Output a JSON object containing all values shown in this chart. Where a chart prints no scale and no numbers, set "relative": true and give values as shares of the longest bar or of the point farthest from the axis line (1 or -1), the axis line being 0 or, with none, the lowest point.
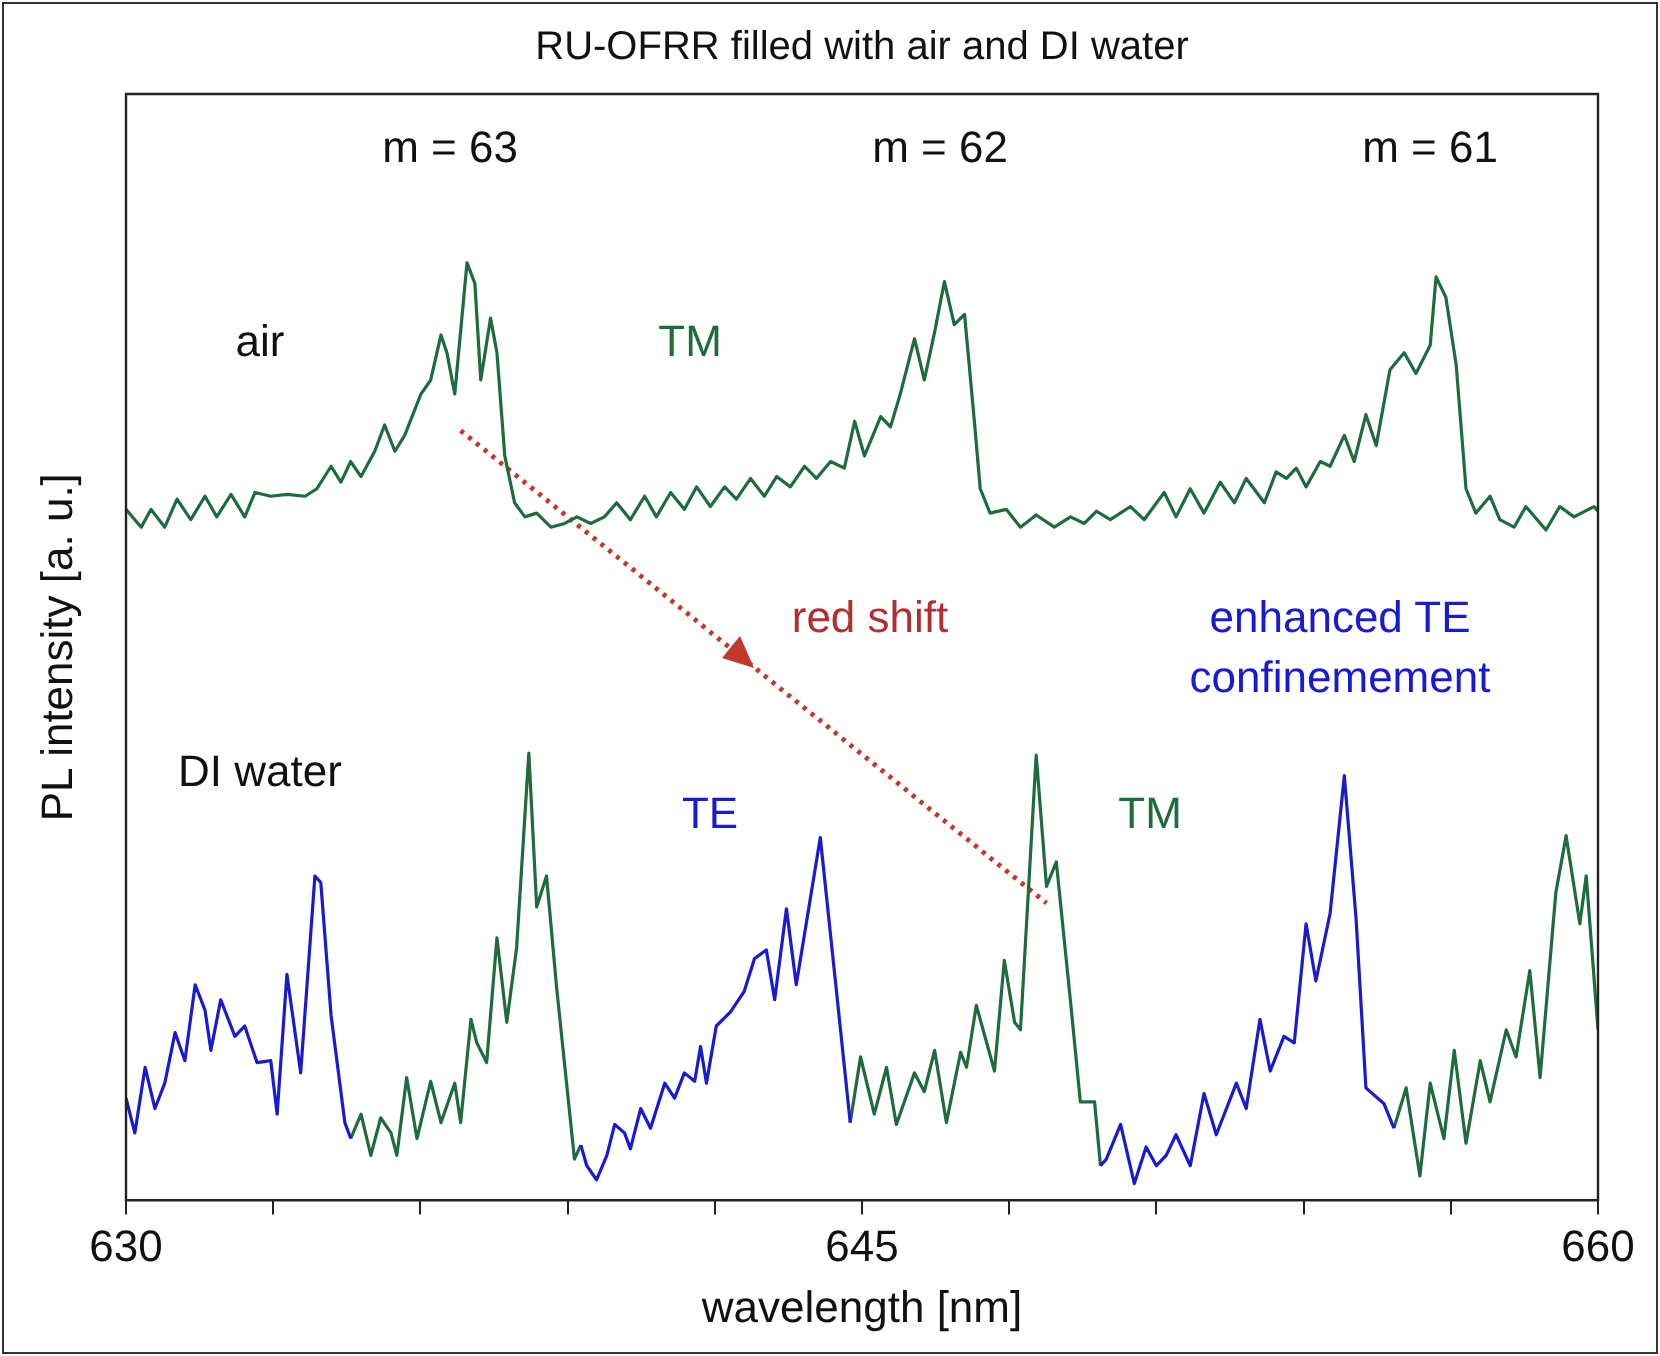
{
  "chart_data": {
    "type": "line",
    "title": "RU-OFRR filled with air and DI water",
    "xlabel": "wavelength [nm]",
    "ylabel": "PL intensity [a. u.]",
    "relative": true,
    "marker": "none",
    "line_style": "solid",
    "xlim": [
      630,
      660
    ],
    "xticks": [
      630,
      {
        "value": 633,
        "label": null
      },
      {
        "value": 636,
        "label": null
      },
      {
        "value": 639,
        "label": null
      },
      {
        "value": 642,
        "label": null
      },
      645,
      {
        "value": 648,
        "label": null
      },
      {
        "value": 651,
        "label": null
      },
      {
        "value": 654,
        "label": null
      },
      {
        "value": 657,
        "label": null
      },
      660
    ],
    "annotations": [
      "m = 63",
      "m = 62",
      "m = 61",
      "air",
      "DI water",
      "red shift",
      "enhanced TE confinemement"
    ],
    "series": [
      {
        "name": "TM",
        "color": "#1e6b3e",
        "x": [
          630.0,
          630.31,
          630.51,
          630.79,
          631.04,
          631.32,
          631.61,
          631.85,
          632.14,
          632.42,
          632.63,
          632.95,
          633.28,
          633.65,
          633.89,
          634.18,
          634.38,
          634.58,
          634.79,
          635.07,
          635.27,
          635.48,
          635.68,
          636.01,
          636.21,
          636.42,
          636.54,
          636.7,
          636.95,
          637.11,
          637.23,
          637.43,
          637.56,
          637.72,
          637.92,
          638.13,
          638.37,
          638.66,
          638.94,
          639.19,
          639.47,
          639.75,
          640.0,
          640.28,
          640.57,
          640.81,
          641.1,
          641.38,
          641.63,
          641.91,
          642.2,
          642.44,
          642.73,
          643.01,
          643.26,
          643.54,
          643.83,
          644.07,
          644.36,
          644.64,
          644.85,
          645.05,
          645.38,
          645.58,
          645.78,
          646.07,
          646.27,
          646.48,
          646.68,
          646.88,
          647.09,
          647.29,
          647.41,
          647.61,
          647.94,
          648.23,
          648.55,
          648.92,
          649.25,
          649.53,
          649.78,
          650.06,
          650.47,
          650.75,
          651.16,
          651.4,
          651.69,
          651.97,
          652.3,
          652.59,
          652.83,
          653.2,
          653.44,
          653.65,
          653.85,
          654.05,
          654.34,
          654.54,
          654.83,
          655.03,
          655.27,
          655.48,
          655.76,
          656.05,
          656.29,
          656.58,
          656.7,
          656.9,
          657.11,
          657.31,
          657.51,
          657.8,
          658.0,
          658.29,
          658.53,
          658.94,
          659.22,
          659.51,
          659.92,
          660.0
        ],
        "values": [
          0.737,
          0.718,
          0.737,
          0.718,
          0.748,
          0.726,
          0.751,
          0.729,
          0.753,
          0.729,
          0.755,
          0.751,
          0.753,
          0.751,
          0.759,
          0.783,
          0.766,
          0.788,
          0.772,
          0.799,
          0.827,
          0.799,
          0.816,
          0.86,
          0.875,
          0.923,
          0.904,
          0.86,
          1,
          0.978,
          0.875,
          0.941,
          0.904,
          0.794,
          0.744,
          0.729,
          0.733,
          0.718,
          0.722,
          0.729,
          0.722,
          0.729,
          0.744,
          0.726,
          0.751,
          0.729,
          0.755,
          0.737,
          0.761,
          0.74,
          0.761,
          0.748,
          0.77,
          0.751,
          0.772,
          0.761,
          0.783,
          0.77,
          0.788,
          0.781,
          0.831,
          0.794,
          0.836,
          0.825,
          0.86,
          0.919,
          0.875,
          0.926,
          0.98,
          0.934,
          0.945,
          0.831,
          0.759,
          0.733,
          0.737,
          0.718,
          0.731,
          0.718,
          0.729,
          0.722,
          0.735,
          0.726,
          0.74,
          0.726,
          0.755,
          0.729,
          0.759,
          0.733,
          0.766,
          0.744,
          0.77,
          0.744,
          0.777,
          0.77,
          0.781,
          0.761,
          0.788,
          0.783,
          0.816,
          0.788,
          0.838,
          0.805,
          0.886,
          0.904,
          0.882,
          0.912,
          0.985,
          0.963,
          0.891,
          0.759,
          0.733,
          0.751,
          0.726,
          0.718,
          0.74,
          0.715,
          0.74,
          0.729,
          0.74,
          0.735
        ]
      },
      {
        "name": "TE",
        "color": "#1a1ad0",
        "x": [
          630.0,
          630.18,
          630.39,
          630.59,
          630.79,
          631.0,
          631.2,
          631.41,
          631.61,
          631.73,
          631.93,
          632.22,
          632.42,
          632.67,
          632.95,
          633.08,
          633.28,
          633.56,
          633.85,
          633.97,
          634.18,
          634.46,
          634.58,
          634.7,
          639.27,
          639.39,
          639.59,
          639.8,
          639.96,
          640.16,
          640.28,
          640.49,
          640.69,
          640.98,
          641.18,
          641.38,
          641.59,
          641.71,
          641.83,
          642.03,
          642.32,
          642.6,
          642.81,
          643.05,
          643.22,
          643.46,
          643.66,
          644.15,
          644.48,
          644.76,
          644.9,
          649.86,
          649.98,
          650.27,
          650.55,
          650.79,
          651.0,
          651.2,
          651.4,
          651.69,
          651.97,
          652.22,
          652.63,
          652.83,
          653.11,
          653.32,
          653.6,
          653.81,
          654.05,
          654.25,
          654.54,
          654.83,
          655.07,
          655.27,
          655.64,
          655.84
        ],
        "values": [
          0.109,
          0.072,
          0.142,
          0.098,
          0.125,
          0.179,
          0.149,
          0.23,
          0.203,
          0.16,
          0.214,
          0.175,
          0.186,
          0.147,
          0.149,
          0.092,
          0.241,
          0.136,
          0.346,
          0.339,
          0.197,
          0.083,
          0.066,
          null,
          0.059,
          0.037,
          0.022,
          0.048,
          0.081,
          0.072,
          0.055,
          0.098,
          0.077,
          0.125,
          0.109,
          0.136,
          0.127,
          0.164,
          0.125,
          0.186,
          0.201,
          0.223,
          0.258,
          0.267,
          0.214,
          0.311,
          0.23,
          0.387,
          0.223,
          0.083,
          null,
          0.037,
          0.044,
          0.081,
          0.018,
          0.057,
          0.037,
          0.048,
          0.07,
          0.037,
          0.114,
          0.07,
          0.125,
          0.098,
          0.193,
          0.138,
          0.175,
          0.168,
          0.295,
          0.234,
          0.306,
          0.453,
          0.3,
          0.12,
          0.103,
          0.077
        ]
      },
      {
        "name": "TM",
        "color": "#1e6b3e",
        "x": [
          634.58,
          634.79,
          634.99,
          635.19,
          635.4,
          635.52,
          635.72,
          635.93,
          636.21,
          636.42,
          636.7,
          636.82,
          637.03,
          637.15,
          637.35,
          637.56,
          637.76,
          637.96,
          638.21,
          638.37,
          638.57,
          638.78,
          639.14,
          639.27,
          639.4,
          644.76,
          644.97,
          645.25,
          645.5,
          645.7,
          646.07,
          646.27,
          646.48,
          646.72,
          647.01,
          647.13,
          647.33,
          647.7,
          647.9,
          648.11,
          648.23,
          648.55,
          648.76,
          648.96,
          649.25,
          649.45,
          649.74,
          649.86,
          650.0,
          655.84,
          656.09,
          656.37,
          656.58,
          656.86,
          657.07,
          657.31,
          657.6,
          657.8,
          658.13,
          658.33,
          658.61,
          658.82,
          659.14,
          659.35,
          659.63,
          659.76,
          660.0
        ],
        "values": [
          0.066,
          0.092,
          0.048,
          0.088,
          0.072,
          0.048,
          0.131,
          0.066,
          0.127,
          0.083,
          0.125,
          0.083,
          0.193,
          0.168,
          0.147,
          0.28,
          0.19,
          0.269,
          0.477,
          0.313,
          0.346,
          0.225,
          0.044,
          0.059,
          null,
          0.083,
          0.153,
          0.092,
          0.142,
          0.081,
          0.136,
          0.116,
          0.16,
          0.083,
          0.158,
          0.142,
          0.208,
          0.138,
          0.256,
          0.19,
          0.182,
          0.475,
          0.335,
          0.361,
          0.212,
          0.105,
          0.105,
          0.037,
          null,
          0.077,
          0.12,
          0.026,
          0.125,
          0.066,
          0.16,
          0.061,
          0.149,
          0.105,
          0.182,
          0.153,
          0.245,
          0.131,
          0.328,
          0.389,
          0.295,
          0.346,
          0.182
        ]
      },
      {
        "type": "line",
        "color": "#c0392b",
        "line_style": "dotted",
        "x": [
          636.82,
          648.76
        ],
        "values": [
          0.821,
          0.317
        ]
      }
    ]
  }
}
